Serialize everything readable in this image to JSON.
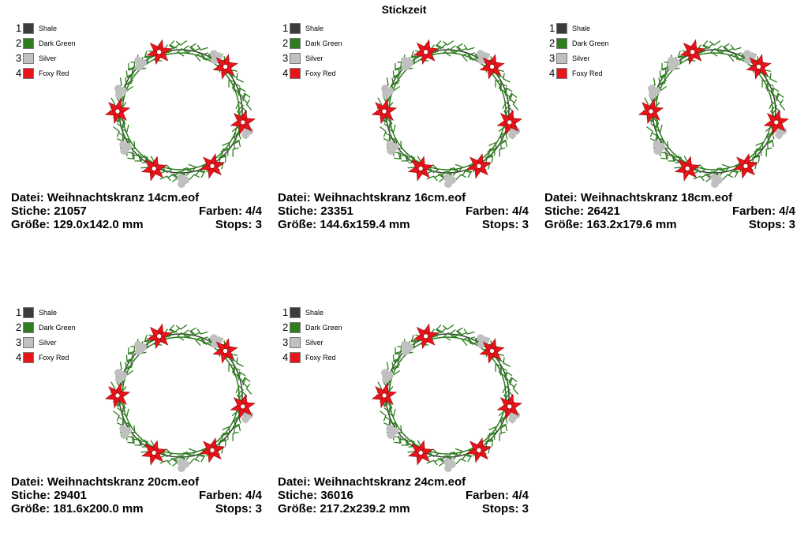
{
  "title": "Stickzeit",
  "labels": {
    "file": "Datei:",
    "stitches": "Stiche:",
    "size": "Größe:",
    "colors": "Farben:",
    "stops": "Stops:"
  },
  "palette": [
    {
      "num": "1",
      "name": "Shale",
      "color": "#3c3c3c"
    },
    {
      "num": "2",
      "name": "Dark Green",
      "color": "#2e7d1f"
    },
    {
      "num": "3",
      "name": "Silver",
      "color": "#c0c0c0"
    },
    {
      "num": "4",
      "name": "Foxy Red",
      "color": "#e8141b"
    }
  ],
  "designs": [
    {
      "file": "Weihnachtskranz 14cm.eof",
      "stitches": "21057",
      "colors": "4/4",
      "size": "129.0x142.0 mm",
      "stops": "3"
    },
    {
      "file": "Weihnachtskranz 16cm.eof",
      "stitches": "23351",
      "colors": "4/4",
      "size": "144.6x159.4 mm",
      "stops": "3"
    },
    {
      "file": "Weihnachtskranz 18cm.eof",
      "stitches": "26421",
      "colors": "4/4",
      "size": "163.2x179.6 mm",
      "stops": "3"
    },
    {
      "file": "Weihnachtskranz 20cm.eof",
      "stitches": "29401",
      "colors": "4/4",
      "size": "181.6x200.0 mm",
      "stops": "3"
    },
    {
      "file": "Weihnachtskranz 24cm.eof",
      "stitches": "36016",
      "colors": "4/4",
      "size": "217.2x239.2 mm",
      "stops": "3"
    }
  ]
}
